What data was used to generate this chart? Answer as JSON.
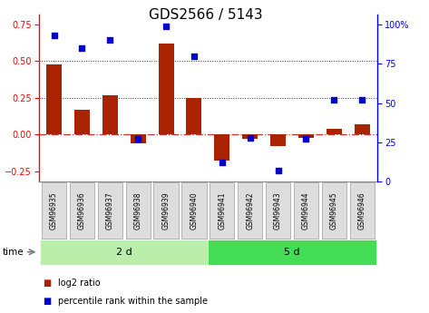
{
  "title": "GDS2566 / 5143",
  "samples": [
    "GSM96935",
    "GSM96936",
    "GSM96937",
    "GSM96938",
    "GSM96939",
    "GSM96940",
    "GSM96941",
    "GSM96942",
    "GSM96943",
    "GSM96944",
    "GSM96945",
    "GSM96946"
  ],
  "log2_ratio": [
    0.48,
    0.17,
    0.27,
    -0.06,
    0.62,
    0.25,
    -0.18,
    -0.03,
    -0.08,
    -0.02,
    0.04,
    0.07
  ],
  "percentile_rank": [
    93,
    85,
    90,
    27,
    99,
    80,
    12,
    28,
    7,
    27,
    52,
    52
  ],
  "groups": [
    {
      "label": "2 d",
      "start": 0,
      "end": 5
    },
    {
      "label": "5 d",
      "start": 6,
      "end": 11
    }
  ],
  "group_colors": [
    "#BBEEAA",
    "#44DD55"
  ],
  "bar_color": "#AA2200",
  "dot_color": "#0000CC",
  "ylim_left": [
    -0.32,
    0.82
  ],
  "ylim_right": [
    0,
    106.67
  ],
  "yticks_left": [
    -0.25,
    0.0,
    0.25,
    0.5,
    0.75
  ],
  "yticks_right": [
    0,
    25,
    50,
    75,
    100
  ],
  "ytick_right_labels": [
    "0",
    "25",
    "50",
    "75",
    "100%"
  ],
  "hlines": [
    0.5,
    0.25
  ],
  "hline_zero_color": "#CC3333",
  "hline_dotted_color": "#333333",
  "legend_bar_label": "log2 ratio",
  "legend_dot_label": "percentile rank within the sample",
  "time_label": "time",
  "title_fontsize": 11,
  "tick_fontsize": 7,
  "sample_fontsize": 5.5,
  "group_fontsize": 8,
  "legend_fontsize": 7
}
